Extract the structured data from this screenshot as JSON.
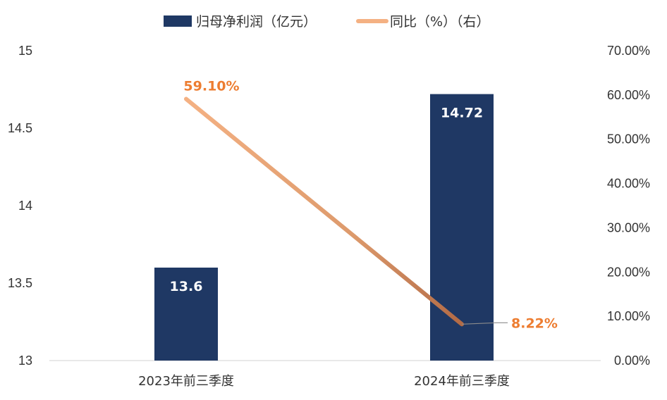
{
  "chart_data": {
    "type": "bar",
    "title": "",
    "categories": [
      "2023年前三季度",
      "2024年前三季度"
    ],
    "series": [
      {
        "name": "归母净利润（亿元）",
        "type": "bar",
        "axis": "left",
        "values": [
          13.6,
          14.72
        ],
        "data_labels": [
          "13.6",
          "14.72"
        ],
        "color": "#1f3864"
      },
      {
        "name": "同比（%）（右）",
        "type": "line",
        "axis": "right",
        "values": [
          59.1,
          8.22
        ],
        "data_labels": [
          "59.10%",
          "8.22%"
        ],
        "color": "#f4b183",
        "label_color": "#ed7d31"
      }
    ],
    "y_left": {
      "ylim": [
        13,
        15
      ],
      "ticks": [
        "13",
        "13.5",
        "14",
        "14.5",
        "15"
      ]
    },
    "y_right": {
      "ylim": [
        0,
        70
      ],
      "ticks": [
        "0.00%",
        "10.00%",
        "20.00%",
        "30.00%",
        "40.00%",
        "50.00%",
        "60.00%",
        "70.00%"
      ]
    },
    "grid": false,
    "legend_position": "top-center"
  }
}
